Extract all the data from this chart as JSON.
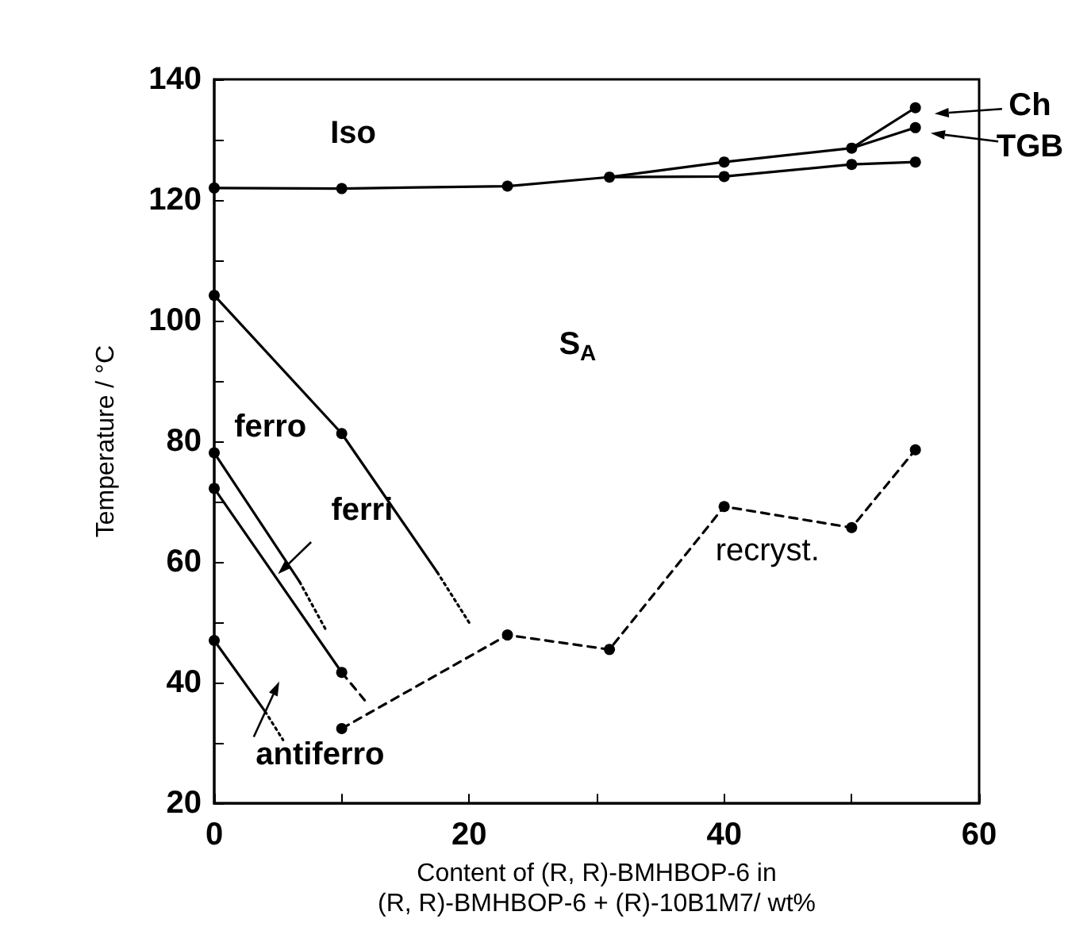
{
  "chart_data": {
    "type": "line",
    "xlabel": "Content of (R, R)-BMHBOP-6 in\n(R, R)-BMHBOP-6 + (R)-10B1M7/ wt%",
    "ylabel": "Temperature / °C",
    "xlim": [
      0,
      60
    ],
    "xticks": [
      0,
      {
        "value": 10,
        "label": null
      },
      20,
      {
        "value": 30,
        "label": null
      },
      40,
      {
        "value": 50,
        "label": null
      },
      60
    ],
    "ylim": [
      20,
      140
    ],
    "yticks": [
      20,
      {
        "value": 30,
        "label": null
      },
      40,
      {
        "value": 50,
        "label": null
      },
      60,
      {
        "value": 70,
        "label": null
      },
      80,
      {
        "value": 90,
        "label": null
      },
      100,
      {
        "value": 110,
        "label": null
      },
      120,
      {
        "value": 130,
        "label": null
      },
      140
    ],
    "grid": false,
    "marker": "none",
    "line_style": "solid",
    "series": [
      {
        "color": "#000000",
        "x": [
          0,
          10,
          23,
          31,
          40,
          50,
          55
        ],
        "values": [
          122,
          121.9,
          122.3,
          123.8,
          123.9,
          125.9,
          126.3
        ]
      },
      {
        "color": "#000000",
        "x": [
          31,
          40,
          50,
          55
        ],
        "values": [
          123.8,
          126.3,
          128.6,
          135.3
        ]
      },
      {
        "color": "#000000",
        "x": [
          50,
          55
        ],
        "values": [
          128.6,
          132
        ]
      },
      {
        "color": "#000000",
        "x": [
          0,
          10,
          17.5
        ],
        "values": [
          104.2,
          81.3,
          58.3
        ]
      },
      {
        "color": "#000000",
        "x": [
          17.5,
          20.1
        ],
        "values": [
          58.3,
          49.6
        ],
        "line_style": "dotted"
      },
      {
        "color": "#000000",
        "x": [
          0,
          6.7
        ],
        "values": [
          78.1,
          56.7
        ]
      },
      {
        "color": "#000000",
        "x": [
          6.7,
          8.8
        ],
        "values": [
          56.7,
          48.6
        ],
        "line_style": "dotted"
      },
      {
        "color": "#000000",
        "x": [
          0,
          10
        ],
        "values": [
          72.2,
          41.7
        ]
      },
      {
        "color": "#000000",
        "x": [
          10,
          11.8
        ],
        "values": [
          41.7,
          37.1
        ],
        "line_style": "dashed"
      },
      {
        "color": "#000000",
        "x": [
          0,
          4
        ],
        "values": [
          47,
          35.2
        ]
      },
      {
        "color": "#000000",
        "x": [
          4,
          5.4
        ],
        "values": [
          35.2,
          30.5
        ],
        "line_style": "dotted"
      },
      {
        "color": "#000000",
        "x": [
          10,
          23,
          31,
          40,
          50,
          55
        ],
        "values": [
          32.4,
          47.9,
          45.5,
          69.2,
          65.7,
          78.6
        ],
        "line_style": "dashed"
      },
      {
        "type": "scatter",
        "marker": "circle",
        "color": "#000000",
        "x": [
          0,
          10,
          23,
          31,
          40,
          50,
          55,
          40,
          50,
          55,
          55,
          0,
          10,
          0,
          0,
          10,
          0,
          10,
          23,
          31,
          40,
          50,
          55
        ],
        "values": [
          122,
          121.9,
          122.3,
          123.8,
          123.9,
          125.9,
          126.3,
          126.3,
          128.6,
          135.3,
          132,
          104.2,
          81.3,
          78.1,
          72.2,
          41.7,
          47,
          32.4,
          47.9,
          45.5,
          69.2,
          65.7,
          78.6
        ]
      }
    ],
    "annotations": [
      "Iso",
      "S$_{A}$",
      "ferro",
      "ferri",
      "antiferro",
      "recryst.",
      "Ch",
      "TGB"
    ]
  }
}
